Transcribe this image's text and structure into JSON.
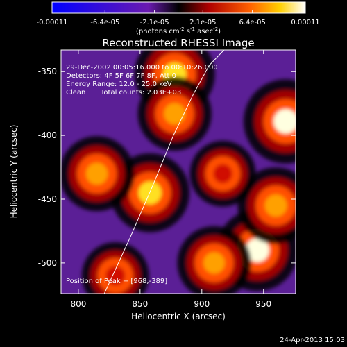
{
  "chart_data": {
    "type": "heatmap",
    "title": "Reconstructed RHESSI Image",
    "xlabel": "Heliocentric X (arcsec)",
    "ylabel": "Heliocentric Y (arcsec)",
    "xlim": [
      786,
      976
    ],
    "ylim": [
      -524,
      -333
    ],
    "x_ticks": [
      "800",
      "850",
      "900",
      "950"
    ],
    "y_ticks": [
      "-350",
      "-400",
      "-450",
      "-500"
    ],
    "colorbar": {
      "ticks": [
        "-0.00011",
        "-6.4e-05",
        "-2.1e-05",
        "2.1e-05",
        "6.4e-05",
        "0.00011"
      ],
      "range": [
        -0.00011,
        0.00011
      ],
      "label": "(photons cm-2 s-1 asec-2)",
      "unit_base": "(photons cm",
      "unit_e1": "-2",
      "unit_mid1": " s",
      "unit_e2": "-1",
      "unit_mid2": " asec",
      "unit_e3": "-2",
      "unit_end": ")"
    },
    "annotations": [
      "29-Dec-2002 00:05:16.000 to 00:10:26.000",
      "Detectors: 4F 5F 6F 7F 8F, Att 0",
      "Energy Range: 12.0 - 25.0 keV",
      "Clean",
      "Total counts: 2.03E+03",
      "Position of Peak = [968,-389]"
    ],
    "limb_curve": {
      "x": [
        821,
        842,
        860,
        877,
        893,
        906,
        918
      ],
      "y": [
        -524,
        -480,
        -440,
        -400,
        -368,
        -345,
        -333
      ]
    },
    "bright_sources": [
      {
        "x": 968,
        "y": -389,
        "value": 0.00011
      },
      {
        "x": 878,
        "y": -352,
        "value": 9.5e-05
      },
      {
        "x": 858,
        "y": -445,
        "value": 9e-05
      },
      {
        "x": 945,
        "y": -490,
        "value": 0.0001
      },
      {
        "x": 910,
        "y": -500,
        "value": 7e-05
      },
      {
        "x": 960,
        "y": -455,
        "value": 8e-05
      },
      {
        "x": 815,
        "y": -430,
        "value": 7.5e-05
      },
      {
        "x": 878,
        "y": -383,
        "value": 7e-05
      },
      {
        "x": 830,
        "y": -510,
        "value": 4.5e-05
      },
      {
        "x": 917,
        "y": -430,
        "value": 4e-05
      }
    ]
  },
  "timestamp": "24-Apr-2013 15:03"
}
